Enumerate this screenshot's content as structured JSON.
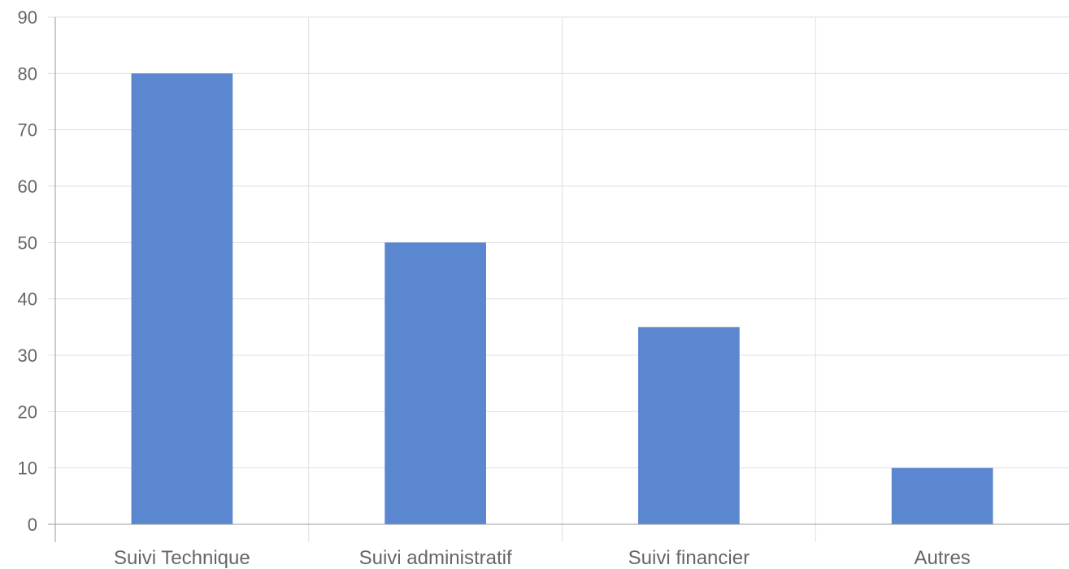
{
  "chart_data": {
    "type": "bar",
    "title": "",
    "xlabel": "",
    "ylabel": "",
    "categories": [
      "Suivi Technique",
      "Suivi administratif",
      "Suivi financier",
      "Autres"
    ],
    "values": [
      80,
      50,
      35,
      10
    ],
    "ylim": [
      0,
      90
    ],
    "yticks": [
      0,
      10,
      20,
      30,
      40,
      50,
      60,
      70,
      80,
      90
    ],
    "grid": true,
    "legend": "none",
    "bar_color": "#5b87d1"
  }
}
